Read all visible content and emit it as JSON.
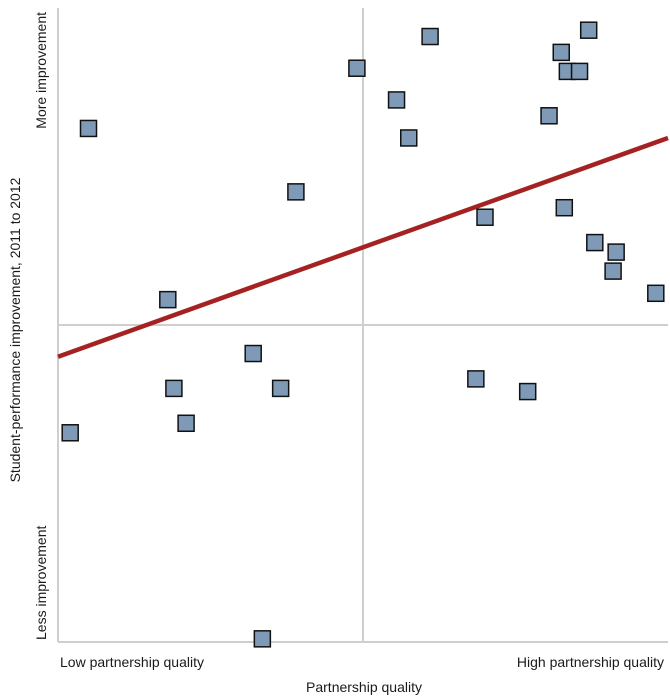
{
  "chart_data": {
    "type": "scatter",
    "title": "",
    "xlabel": "Partnership quality",
    "ylabel": "Student-performance improvement, 2011 to 2012",
    "x_endpoint_labels": {
      "low": "Low partnership quality",
      "high": "High partnership quality"
    },
    "y_endpoint_labels": {
      "low": "Less improvement",
      "high": "More improvement"
    },
    "xlim": [
      0,
      100
    ],
    "ylim": [
      0,
      100
    ],
    "midline_x": 50,
    "midline_y": 50,
    "points": [
      {
        "x": 2,
        "y": 33
      },
      {
        "x": 5,
        "y": 81
      },
      {
        "x": 18,
        "y": 54
      },
      {
        "x": 19,
        "y": 40
      },
      {
        "x": 21,
        "y": 34.5
      },
      {
        "x": 32,
        "y": 45.5
      },
      {
        "x": 33.5,
        "y": 0.5
      },
      {
        "x": 36.5,
        "y": 40
      },
      {
        "x": 39,
        "y": 71
      },
      {
        "x": 49,
        "y": 90.5
      },
      {
        "x": 55.5,
        "y": 85.5
      },
      {
        "x": 57.5,
        "y": 79.5
      },
      {
        "x": 61,
        "y": 95.5
      },
      {
        "x": 68.5,
        "y": 41.5
      },
      {
        "x": 70,
        "y": 67
      },
      {
        "x": 77,
        "y": 39.5
      },
      {
        "x": 80.5,
        "y": 83
      },
      {
        "x": 82.5,
        "y": 93
      },
      {
        "x": 83,
        "y": 68.5
      },
      {
        "x": 83.5,
        "y": 90
      },
      {
        "x": 85.5,
        "y": 90
      },
      {
        "x": 87,
        "y": 96.5
      },
      {
        "x": 88,
        "y": 63
      },
      {
        "x": 91,
        "y": 58.5
      },
      {
        "x": 91.5,
        "y": 61.5
      },
      {
        "x": 98,
        "y": 55
      }
    ],
    "trend_line": {
      "x": [
        0,
        100
      ],
      "y": [
        45,
        79.5
      ]
    },
    "colors": {
      "marker_fill": "#7f9ab6",
      "marker_stroke": "#111111",
      "trend_line": "#a52222",
      "gridline": "#cfcfcf",
      "axis": "#cfcfcf"
    }
  }
}
